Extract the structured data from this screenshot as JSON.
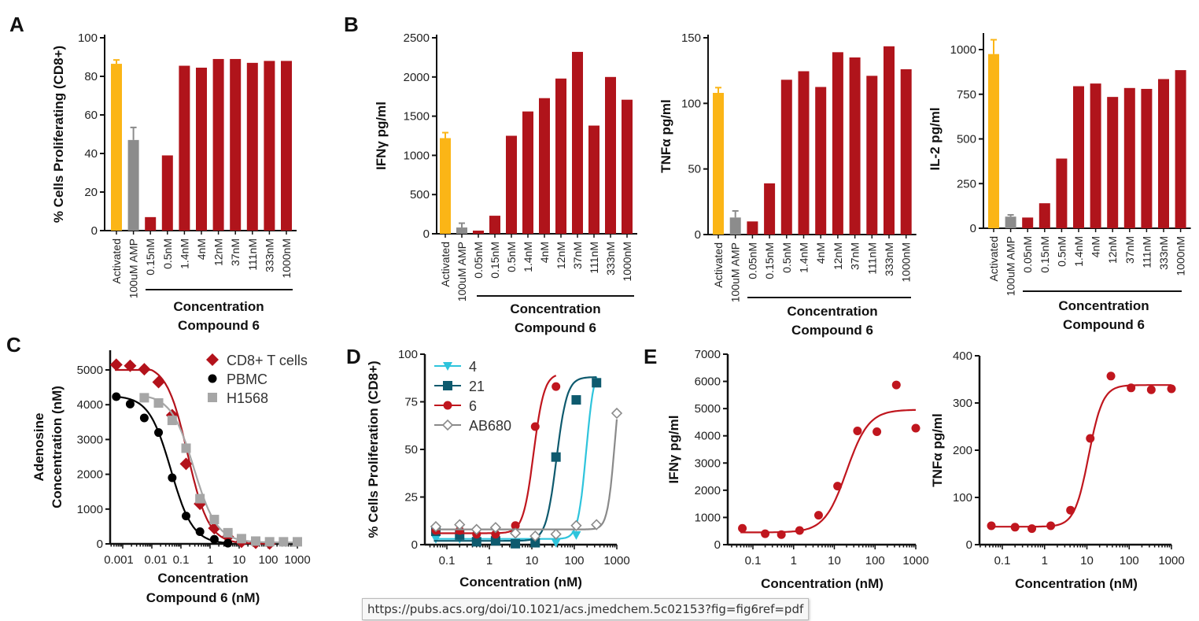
{
  "tooltip": {
    "url": "https://pubs.acs.org/doi/10.1021/acs.jmedchem.5c02153?fig=fig6ref=pdf"
  },
  "colors": {
    "activated": "#fbb516",
    "amp": "#8c8c8c",
    "compound": "#b0141b",
    "cd8": "#b3121b",
    "pbmc": "#000000",
    "h1568": "#a6a6a6",
    "c4": "#2ec4dc",
    "c21": "#0e5a6e",
    "c6": "#c0161e",
    "ab680": "#8a8a8a"
  },
  "chart_data": [
    {
      "panel_label": "A",
      "type": "bar",
      "ylabel": "% Cells Proliferating (CD8+)",
      "ylim": [
        0,
        100
      ],
      "yticks": [
        0,
        20,
        40,
        60,
        80,
        100
      ],
      "categories": [
        "Activated",
        "100uM AMP",
        "0.15nM",
        "0.5nM",
        "1.4nM",
        "4nM",
        "12nM",
        "37nM",
        "111nM",
        "333nM",
        "1000nM"
      ],
      "values": [
        86.5,
        47,
        7,
        39,
        85.5,
        84.5,
        89,
        89,
        87,
        88,
        88
      ],
      "error_upper": [
        88.5,
        53.5,
        null,
        null,
        null,
        null,
        null,
        null,
        null,
        null,
        null
      ],
      "group_label": [
        "Concentration",
        "Compound 6"
      ]
    },
    {
      "panel_label": "B",
      "type": "bar",
      "ylabel": "IFNγ pg/ml",
      "ylim": [
        0,
        2500
      ],
      "yticks": [
        0,
        500,
        1000,
        1500,
        2000,
        2500
      ],
      "categories": [
        "Activated",
        "100uM AMP",
        "0.05nM",
        "0.15nM",
        "0.5nM",
        "1.4nM",
        "4nM",
        "12nM",
        "37nM",
        "111nM",
        "333nM",
        "1000nM"
      ],
      "values": [
        1220,
        80,
        40,
        230,
        1250,
        1560,
        1730,
        1980,
        2320,
        1380,
        2000,
        1710
      ],
      "error_upper": [
        1290,
        135,
        null,
        null,
        null,
        null,
        null,
        null,
        null,
        null,
        null,
        null
      ],
      "group_label": [
        "Concentration",
        "Compound 6"
      ]
    },
    {
      "panel_label": "",
      "type": "bar",
      "ylabel": "TNFα pg/ml",
      "ylim": [
        0,
        150
      ],
      "yticks": [
        0,
        50,
        100,
        150
      ],
      "categories": [
        "Activated",
        "100uM AMP",
        "0.05nM",
        "0.15nM",
        "0.5nM",
        "1.4nM",
        "4nM",
        "12nM",
        "37nM",
        "111nM",
        "333nM",
        "1000nM"
      ],
      "values": [
        108,
        13,
        10,
        39,
        118,
        124.5,
        112.5,
        139,
        135,
        121,
        143.5,
        126
      ],
      "error_upper": [
        112,
        18,
        null,
        null,
        null,
        null,
        null,
        null,
        null,
        null,
        null,
        null
      ],
      "group_label": [
        "Concentration",
        "Compound 6"
      ]
    },
    {
      "panel_label": "",
      "type": "bar",
      "ylabel": "IL-2 pg/ml",
      "ylim": [
        0,
        1000
      ],
      "yticks": [
        0,
        250,
        500,
        750,
        1000
      ],
      "categories": [
        "Activated",
        "100uM AMP",
        "0.05nM",
        "0.15nM",
        "0.5nM",
        "1.4nM",
        "4nM",
        "12nM",
        "37nM",
        "111nM",
        "333nM",
        "1000nM"
      ],
      "values": [
        975,
        65,
        60,
        140,
        390,
        795,
        810,
        735,
        785,
        780,
        835,
        885
      ],
      "error_upper": [
        1055,
        75,
        null,
        null,
        null,
        null,
        null,
        null,
        null,
        null,
        null,
        null
      ],
      "group_label": [
        "Concentration",
        "Compound 6"
      ]
    },
    {
      "panel_label": "C",
      "type": "line",
      "xscale": "log",
      "xlabel": [
        "Concentration",
        "Compound 6 (nM)"
      ],
      "ylabel": [
        "Adenosine",
        "Concentration (nM)"
      ],
      "ylim": [
        0,
        5000
      ],
      "yticks": [
        0,
        1000,
        2000,
        3000,
        4000,
        5000
      ],
      "xticks": [
        0.001,
        0.01,
        0.1,
        1,
        10,
        100,
        1000
      ],
      "xtick_labels": [
        "0.001",
        "0.01",
        "0.1",
        "1",
        "10",
        "100",
        "1000"
      ],
      "legend": "top-right",
      "series": [
        {
          "name": "CD8+ T cells",
          "color": "cd8",
          "marker": "diamond",
          "x": [
            0.0006,
            0.0018,
            0.0055,
            0.017,
            0.05,
            0.15,
            0.45,
            1.4,
            4.1,
            12,
            37,
            111
          ],
          "y": [
            5150,
            5120,
            5020,
            4650,
            3700,
            2300,
            1150,
            450,
            200,
            60,
            30,
            10
          ]
        },
        {
          "name": "PBMC",
          "color": "pbmc",
          "marker": "circle",
          "x": [
            0.0006,
            0.0018,
            0.0055,
            0.017,
            0.05,
            0.15,
            0.45,
            1.4,
            4.1
          ],
          "y": [
            4230,
            4020,
            3620,
            3200,
            1900,
            800,
            350,
            130,
            20
          ]
        },
        {
          "name": "H1568",
          "color": "h1568",
          "marker": "square",
          "x": [
            0.0055,
            0.017,
            0.05,
            0.15,
            0.45,
            1.4,
            4.1,
            12,
            37,
            111,
            333,
            1000
          ],
          "y": [
            4200,
            4050,
            3550,
            2750,
            1300,
            700,
            320,
            150,
            80,
            60,
            60,
            60
          ]
        }
      ]
    },
    {
      "panel_label": "D",
      "type": "line",
      "xscale": "log",
      "xlabel": [
        "Concentration (nM)"
      ],
      "ylabel": [
        "% Cells Proliferation (CD8+)"
      ],
      "ylim": [
        0,
        100
      ],
      "yticks": [
        0,
        25,
        50,
        75,
        100
      ],
      "xticks": [
        0.1,
        1,
        10,
        100,
        1000
      ],
      "xtick_labels": [
        "0.1",
        "1",
        "10",
        "100",
        "1000"
      ],
      "legend": "top-left",
      "series": [
        {
          "name": "4",
          "color": "c4",
          "marker": "triangle",
          "x": [
            0.055,
            0.2,
            0.5,
            1.4,
            4.1,
            12,
            37,
            111,
            333
          ],
          "y": [
            3,
            3,
            2,
            2,
            1,
            1,
            1,
            5,
            85
          ]
        },
        {
          "name": "21",
          "color": "c21",
          "marker": "square",
          "x": [
            0.055,
            0.2,
            0.5,
            1.4,
            4.1,
            12,
            37,
            111,
            333
          ],
          "y": [
            7,
            5,
            1.5,
            2,
            0.5,
            1,
            46,
            76,
            85
          ]
        },
        {
          "name": "6",
          "color": "c6",
          "marker": "circle",
          "x": [
            0.055,
            0.2,
            0.5,
            1.4,
            4.1,
            12,
            37
          ],
          "y": [
            7.5,
            7.5,
            5.5,
            5.5,
            10,
            62,
            83
          ]
        },
        {
          "name": "AB680",
          "color": "ab680",
          "marker": "open-diamond",
          "x": [
            0.055,
            0.2,
            0.5,
            1.4,
            4.1,
            12,
            37,
            111,
            333,
            1000
          ],
          "y": [
            9.5,
            10.5,
            8,
            9,
            6,
            4.5,
            5.5,
            10,
            10.5,
            69
          ]
        }
      ]
    },
    {
      "panel_label": "E",
      "type": "scatter",
      "xscale": "log",
      "xlabel": [
        "Concentration (nM)"
      ],
      "ylabel": [
        "IFNγ pg/ml"
      ],
      "ylim": [
        0,
        7000
      ],
      "yticks": [
        0,
        1000,
        2000,
        3000,
        4000,
        5000,
        6000,
        7000
      ],
      "xticks": [
        0.1,
        1,
        10,
        100,
        1000
      ],
      "xtick_labels": [
        "0.1",
        "1",
        "10",
        "100",
        "1000"
      ],
      "series": [
        {
          "color": "c6",
          "marker": "circle",
          "x": [
            0.055,
            0.2,
            0.5,
            1.4,
            4.1,
            12,
            37,
            111,
            333,
            1000
          ],
          "y": [
            600,
            400,
            370,
            520,
            1080,
            2150,
            4180,
            4150,
            5870,
            4280
          ]
        }
      ]
    },
    {
      "panel_label": "",
      "type": "scatter",
      "xscale": "log",
      "xlabel": [
        "Concentration (nM)"
      ],
      "ylabel": [
        "TNFα pg/ml"
      ],
      "ylim": [
        0,
        400
      ],
      "yticks": [
        0,
        100,
        200,
        300,
        400
      ],
      "xticks": [
        0.1,
        1,
        10,
        100,
        1000
      ],
      "xtick_labels": [
        "0.1",
        "1",
        "10",
        "100",
        "1000"
      ],
      "series": [
        {
          "color": "c6",
          "marker": "circle",
          "x": [
            0.055,
            0.2,
            0.5,
            1.4,
            4.1,
            12,
            37,
            111,
            333,
            1000
          ],
          "y": [
            40,
            37,
            34,
            40,
            73,
            225,
            357,
            332,
            328,
            330
          ]
        }
      ]
    }
  ]
}
